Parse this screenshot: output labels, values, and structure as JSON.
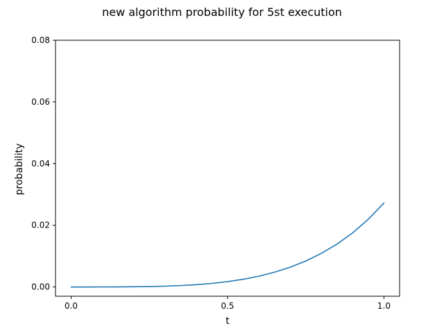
{
  "chart_data": {
    "type": "line",
    "title": "new algorithm probability for 5st execution",
    "xlabel": "t",
    "ylabel": "probability",
    "xlim": [
      -0.05,
      1.05
    ],
    "ylim": [
      -0.003,
      0.08
    ],
    "xticks": [
      0.0,
      0.5,
      1.0
    ],
    "xtick_labels": [
      "0.0",
      "0.5",
      "1.0"
    ],
    "yticks": [
      0.0,
      0.02,
      0.04,
      0.06,
      0.08
    ],
    "ytick_labels": [
      "0.00",
      "0.02",
      "0.04",
      "0.06",
      "0.08"
    ],
    "grid": false,
    "legend": "none",
    "series": [
      {
        "color": "#1f77b4",
        "x": [
          0.0,
          0.05,
          0.1,
          0.15,
          0.2,
          0.25,
          0.3,
          0.35,
          0.4,
          0.45,
          0.5,
          0.55,
          0.6,
          0.65,
          0.7,
          0.75,
          0.8,
          0.85,
          0.9,
          0.95,
          1.0
        ],
        "y": [
          0.0,
          0.0,
          1e-05,
          3e-05,
          7e-05,
          0.00014,
          0.00026,
          0.00046,
          0.00075,
          0.00116,
          0.00173,
          0.0025,
          0.0035,
          0.00478,
          0.0064,
          0.00842,
          0.0109,
          0.01391,
          0.01756,
          0.02196,
          0.02725
        ]
      }
    ]
  }
}
